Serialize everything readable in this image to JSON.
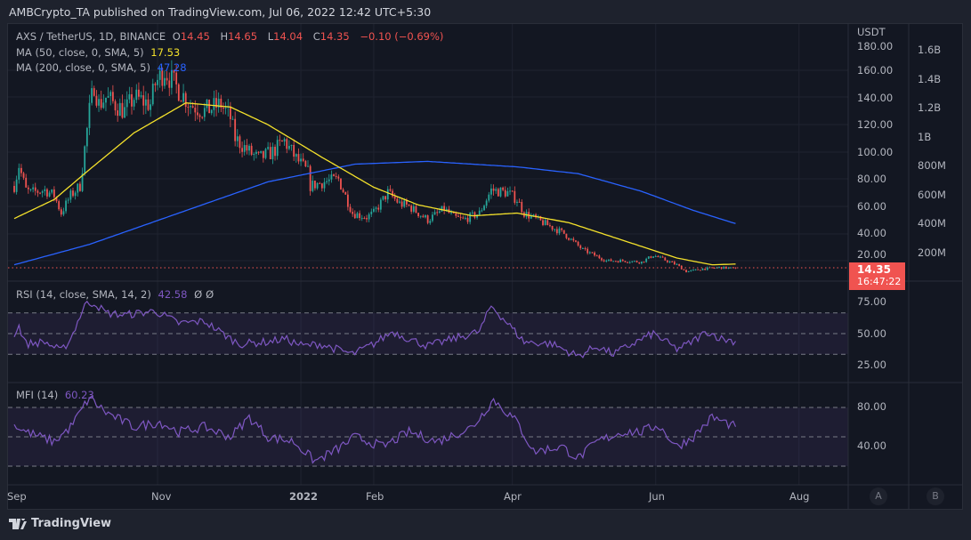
{
  "header": {
    "title": "AMBCrypto_TA published on TradingView.com, Jul 06, 2022 12:42 UTC+5:30"
  },
  "legend": {
    "symbol": "AXS / TetherUS, 1D, BINANCE",
    "o_label": "O",
    "o": "14.45",
    "h_label": "H",
    "h": "14.65",
    "l_label": "L",
    "l": "14.04",
    "c_label": "C",
    "c": "14.35",
    "change": "−0.10 (−0.69%)",
    "ma50_label": "MA (50, close, 0, SMA, 5)",
    "ma50_value": "17.53",
    "ma200_label": "MA (200, close, 0, SMA, 5)",
    "ma200_value": "47.28",
    "rsi_label": "RSI (14, close, SMA, 14, 2)",
    "rsi_value": "42.58",
    "rsi_extra1": "Ø",
    "rsi_extra2": "Ø",
    "mfi_label": "MFI (14)",
    "mfi_value": "60.23"
  },
  "price_axis": {
    "currency": "USDT",
    "ticks": [
      "180.00",
      "160.00",
      "140.00",
      "120.00",
      "100.00",
      "80.00",
      "60.00",
      "40.00",
      "20.00"
    ],
    "last_price": "14.35",
    "countdown": "16:47:22"
  },
  "volume_axis": {
    "ticks": [
      "1.6B",
      "1.4B",
      "1.2B",
      "1B",
      "800M",
      "600M",
      "400M",
      "200M"
    ]
  },
  "rsi_axis": {
    "ticks": [
      "75.00",
      "50.00",
      "25.00"
    ]
  },
  "mfi_axis": {
    "ticks": [
      "80.00",
      "40.00"
    ]
  },
  "time_axis": {
    "ticks": [
      "Sep",
      "Nov",
      "2022",
      "Feb",
      "Apr",
      "Jun",
      "Aug"
    ]
  },
  "scale_buttons": {
    "a": "A",
    "b": "B"
  },
  "brand": {
    "name": "TradingView"
  },
  "colors": {
    "up": "#26a69a",
    "down": "#ef5350",
    "ma50": "#f4e12b",
    "ma200": "#2962ff",
    "rsi": "#7e57c2"
  },
  "chart_data": {
    "type": "candlestick",
    "x_unit": "days since Sep 1, 2021",
    "close_keypoints": [
      [
        0,
        75
      ],
      [
        2,
        90
      ],
      [
        5,
        72
      ],
      [
        7,
        70
      ],
      [
        13,
        72
      ],
      [
        17,
        68
      ],
      [
        20,
        55
      ],
      [
        24,
        68
      ],
      [
        28,
        75
      ],
      [
        32,
        130
      ],
      [
        34,
        150
      ],
      [
        36,
        135
      ],
      [
        39,
        140
      ],
      [
        47,
        130
      ],
      [
        51,
        140
      ],
      [
        58,
        135
      ],
      [
        60,
        150
      ],
      [
        64,
        160
      ],
      [
        68,
        150
      ],
      [
        75,
        135
      ],
      [
        81,
        130
      ],
      [
        88,
        135
      ],
      [
        92,
        125
      ],
      [
        94,
        110
      ],
      [
        100,
        100
      ],
      [
        104,
        95
      ],
      [
        110,
        100
      ],
      [
        115,
        108
      ],
      [
        120,
        95
      ],
      [
        125,
        85
      ],
      [
        126,
        75
      ],
      [
        132,
        78
      ],
      [
        138,
        80
      ],
      [
        144,
        55
      ],
      [
        150,
        52
      ],
      [
        153,
        55
      ],
      [
        159,
        70
      ],
      [
        164,
        62
      ],
      [
        168,
        60
      ],
      [
        176,
        50
      ],
      [
        183,
        58
      ],
      [
        187,
        52
      ],
      [
        191,
        50
      ],
      [
        198,
        55
      ],
      [
        203,
        72
      ],
      [
        210,
        70
      ],
      [
        214,
        65
      ],
      [
        217,
        55
      ],
      [
        225,
        48
      ],
      [
        234,
        40
      ],
      [
        242,
        28
      ],
      [
        252,
        20
      ],
      [
        259,
        20
      ],
      [
        267,
        19
      ],
      [
        272,
        24
      ],
      [
        282,
        17
      ],
      [
        286,
        12
      ],
      [
        293,
        14
      ],
      [
        300,
        15
      ],
      [
        307,
        14.35
      ]
    ],
    "ma50_keypoints": [
      [
        0,
        51
      ],
      [
        17,
        65
      ],
      [
        32,
        87
      ],
      [
        51,
        114
      ],
      [
        73,
        136
      ],
      [
        92,
        133
      ],
      [
        108,
        120
      ],
      [
        130,
        97
      ],
      [
        153,
        74
      ],
      [
        172,
        61
      ],
      [
        195,
        53
      ],
      [
        214,
        55
      ],
      [
        236,
        48
      ],
      [
        259,
        35
      ],
      [
        282,
        22
      ],
      [
        297,
        17
      ],
      [
        307,
        17.53
      ]
    ],
    "ma200_keypoints": [
      [
        0,
        17
      ],
      [
        32,
        32
      ],
      [
        70,
        55
      ],
      [
        108,
        78
      ],
      [
        145,
        91
      ],
      [
        176,
        93
      ],
      [
        214,
        89
      ],
      [
        240,
        84
      ],
      [
        267,
        71
      ],
      [
        289,
        57
      ],
      [
        307,
        47.28
      ]
    ],
    "rsi_keypoints": [
      [
        0,
        50
      ],
      [
        2,
        57
      ],
      [
        5,
        40
      ],
      [
        13,
        42
      ],
      [
        20,
        33
      ],
      [
        24,
        45
      ],
      [
        30,
        78
      ],
      [
        34,
        80
      ],
      [
        39,
        70
      ],
      [
        47,
        68
      ],
      [
        60,
        72
      ],
      [
        70,
        60
      ],
      [
        81,
        62
      ],
      [
        92,
        45
      ],
      [
        96,
        40
      ],
      [
        108,
        42
      ],
      [
        115,
        45
      ],
      [
        123,
        38
      ],
      [
        130,
        40
      ],
      [
        144,
        30
      ],
      [
        153,
        40
      ],
      [
        161,
        52
      ],
      [
        168,
        45
      ],
      [
        176,
        38
      ],
      [
        187,
        45
      ],
      [
        198,
        52
      ],
      [
        203,
        77
      ],
      [
        210,
        60
      ],
      [
        217,
        42
      ],
      [
        229,
        40
      ],
      [
        240,
        28
      ],
      [
        248,
        38
      ],
      [
        255,
        30
      ],
      [
        263,
        40
      ],
      [
        272,
        50
      ],
      [
        282,
        35
      ],
      [
        287,
        40
      ],
      [
        295,
        52
      ],
      [
        301,
        45
      ],
      [
        307,
        42.58
      ]
    ],
    "mfi_keypoints": [
      [
        0,
        62
      ],
      [
        5,
        55
      ],
      [
        17,
        45
      ],
      [
        24,
        60
      ],
      [
        32,
        90
      ],
      [
        39,
        75
      ],
      [
        51,
        60
      ],
      [
        62,
        65
      ],
      [
        70,
        55
      ],
      [
        81,
        60
      ],
      [
        92,
        50
      ],
      [
        100,
        70
      ],
      [
        108,
        50
      ],
      [
        119,
        45
      ],
      [
        128,
        25
      ],
      [
        138,
        38
      ],
      [
        145,
        50
      ],
      [
        157,
        40
      ],
      [
        168,
        55
      ],
      [
        180,
        45
      ],
      [
        195,
        60
      ],
      [
        204,
        88
      ],
      [
        214,
        65
      ],
      [
        221,
        35
      ],
      [
        233,
        40
      ],
      [
        240,
        28
      ],
      [
        248,
        45
      ],
      [
        259,
        55
      ],
      [
        267,
        55
      ],
      [
        274,
        62
      ],
      [
        282,
        40
      ],
      [
        289,
        50
      ],
      [
        297,
        70
      ],
      [
        307,
        60.23
      ]
    ],
    "price_range": [
      0,
      190
    ],
    "rsi_range": [
      0,
      100
    ],
    "mfi_range": [
      0,
      100
    ]
  }
}
